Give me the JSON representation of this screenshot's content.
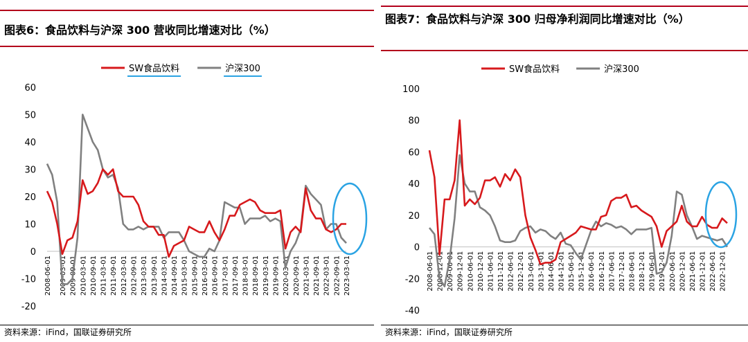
{
  "colors": {
    "food": "#d7191c",
    "hs300": "#808080",
    "circle": "#2aa3e3",
    "rule": "#b3001b"
  },
  "chart_data": [
    {
      "type": "line",
      "title": "图表6：食品饮料与沪深 300 营收同比增速对比（%）",
      "source": "资料来源：iFind，国联证券研究所",
      "legend_position": "top",
      "grid": false,
      "ylim": [
        -20,
        60
      ],
      "yticks": [
        -20,
        -10,
        0,
        10,
        20,
        30,
        40,
        50,
        60
      ],
      "xlim": [
        0,
        59
      ],
      "xticks": [
        {
          "i": 0,
          "label": "2008-06-01"
        },
        {
          "i": 3,
          "label": "2009-03-01"
        },
        {
          "i": 5,
          "label": "2009-09-01"
        },
        {
          "i": 7,
          "label": "2010-03-01"
        },
        {
          "i": 9,
          "label": "2010-09-01"
        },
        {
          "i": 11,
          "label": "2011-03-01"
        },
        {
          "i": 13,
          "label": "2011-09-01"
        },
        {
          "i": 15,
          "label": "2012-03-01"
        },
        {
          "i": 17,
          "label": "2012-09-01"
        },
        {
          "i": 19,
          "label": "2013-03-01"
        },
        {
          "i": 21,
          "label": "2013-09-01"
        },
        {
          "i": 23,
          "label": "2014-03-01"
        },
        {
          "i": 25,
          "label": "2014-09-01"
        },
        {
          "i": 27,
          "label": "2015-03-01"
        },
        {
          "i": 29,
          "label": "2015-09-01"
        },
        {
          "i": 31,
          "label": "2016-03-01"
        },
        {
          "i": 33,
          "label": "2016-09-01"
        },
        {
          "i": 35,
          "label": "2017-03-01"
        },
        {
          "i": 37,
          "label": "2017-09-01"
        },
        {
          "i": 39,
          "label": "2018-03-01"
        },
        {
          "i": 41,
          "label": "2018-09-01"
        },
        {
          "i": 43,
          "label": "2019-03-01"
        },
        {
          "i": 45,
          "label": "2019-09-01"
        },
        {
          "i": 47,
          "label": "2020-03-01"
        },
        {
          "i": 49,
          "label": "2020-09-01"
        },
        {
          "i": 51,
          "label": "2021-03-01"
        },
        {
          "i": 53,
          "label": "2021-09-01"
        },
        {
          "i": 55,
          "label": "2022-03-01"
        },
        {
          "i": 57,
          "label": "2022-09-01"
        },
        {
          "i": 59,
          "label": "2023-03-01"
        }
      ],
      "series": [
        {
          "name": "SW食品饮料",
          "color": "#d7191c",
          "values": [
            22,
            18,
            10,
            -1,
            4,
            5,
            11,
            26,
            21,
            22,
            25,
            30,
            28,
            30,
            22,
            20,
            20,
            20,
            17,
            11,
            9,
            9,
            6,
            6,
            -2,
            2,
            3,
            4,
            9,
            8,
            7,
            7,
            11,
            7,
            4,
            8,
            13,
            13,
            17,
            18,
            19,
            18,
            15,
            14,
            14,
            14,
            15,
            1,
            7,
            9,
            7,
            23,
            15,
            12,
            12,
            8,
            7,
            8,
            10,
            10
          ]
        },
        {
          "name": "沪深300",
          "color": "#808080",
          "values": [
            32,
            28,
            18,
            -12,
            -12,
            -10,
            5,
            50,
            45,
            40,
            37,
            30,
            27,
            28,
            23,
            10,
            8,
            8,
            9,
            8,
            9,
            9,
            9,
            5,
            7,
            7,
            7,
            4,
            0,
            -1,
            -2,
            -2,
            1,
            0,
            4,
            18,
            17,
            16,
            16,
            10,
            12,
            12,
            12,
            13,
            11,
            12,
            11,
            -6,
            0,
            3,
            8,
            24,
            21,
            19,
            17,
            8,
            10,
            10,
            5,
            3
          ]
        }
      ]
    },
    {
      "type": "line",
      "title": "图表7：食品饮料与沪深 300 归母净利润同比增速对比（%）",
      "source": "资料来源：iFind，国联证券研究所",
      "legend_position": "top",
      "grid": false,
      "ylim": [
        -40,
        100
      ],
      "yticks": [
        -40,
        -20,
        0,
        20,
        40,
        60,
        80,
        100
      ],
      "xlim": [
        0,
        59
      ],
      "xticks": [
        {
          "i": 0,
          "label": "2008-06-01"
        },
        {
          "i": 2,
          "label": "2008-12-01"
        },
        {
          "i": 4,
          "label": "2009-06-01"
        },
        {
          "i": 6,
          "label": "2009-12-01"
        },
        {
          "i": 8,
          "label": "2010-06-01"
        },
        {
          "i": 10,
          "label": "2010-12-01"
        },
        {
          "i": 12,
          "label": "2011-06-01"
        },
        {
          "i": 14,
          "label": "2011-12-01"
        },
        {
          "i": 16,
          "label": "2012-06-01"
        },
        {
          "i": 18,
          "label": "2012-12-01"
        },
        {
          "i": 20,
          "label": "2013-06-01"
        },
        {
          "i": 22,
          "label": "2013-12-01"
        },
        {
          "i": 24,
          "label": "2014-06-01"
        },
        {
          "i": 26,
          "label": "2014-12-01"
        },
        {
          "i": 28,
          "label": "2015-06-01"
        },
        {
          "i": 30,
          "label": "2015-12-01"
        },
        {
          "i": 32,
          "label": "2016-06-01"
        },
        {
          "i": 34,
          "label": "2016-12-01"
        },
        {
          "i": 36,
          "label": "2017-06-01"
        },
        {
          "i": 38,
          "label": "2017-12-01"
        },
        {
          "i": 40,
          "label": "2018-06-01"
        },
        {
          "i": 42,
          "label": "2018-12-01"
        },
        {
          "i": 44,
          "label": "2019-06-01"
        },
        {
          "i": 46,
          "label": "2019-12-01"
        },
        {
          "i": 48,
          "label": "2020-06-01"
        },
        {
          "i": 50,
          "label": "2020-12-01"
        },
        {
          "i": 52,
          "label": "2021-06-01"
        },
        {
          "i": 54,
          "label": "2021-12-01"
        },
        {
          "i": 56,
          "label": "2022-06-01"
        },
        {
          "i": 58,
          "label": "2022-12-01"
        }
      ],
      "series": [
        {
          "name": "SW食品饮料",
          "color": "#d7191c",
          "values": [
            61,
            44,
            -5,
            30,
            30,
            42,
            80,
            26,
            30,
            27,
            31,
            42,
            42,
            44,
            38,
            46,
            42,
            49,
            44,
            20,
            6,
            -2,
            -11,
            -10,
            -10,
            -8,
            3,
            5,
            7,
            9,
            13,
            12,
            11,
            11,
            19,
            20,
            29,
            31,
            31,
            33,
            25,
            26,
            23,
            21,
            19,
            13,
            0,
            10,
            13,
            16,
            26,
            16,
            13,
            13,
            19,
            14,
            12,
            12,
            18,
            15
          ]
        },
        {
          "name": "沪深300",
          "color": "#808080",
          "values": [
            12,
            8,
            -20,
            -25,
            -8,
            18,
            58,
            40,
            35,
            35,
            25,
            23,
            20,
            13,
            4,
            3,
            3,
            4,
            10,
            12,
            13,
            9,
            11,
            10,
            7,
            5,
            9,
            2,
            1,
            -4,
            -8,
            1,
            10,
            16,
            13,
            15,
            14,
            12,
            13,
            11,
            8,
            11,
            11,
            11,
            12,
            -17,
            -16,
            -10,
            7,
            35,
            33,
            20,
            13,
            5,
            7,
            6,
            5,
            4,
            5,
            0
          ]
        }
      ]
    }
  ]
}
